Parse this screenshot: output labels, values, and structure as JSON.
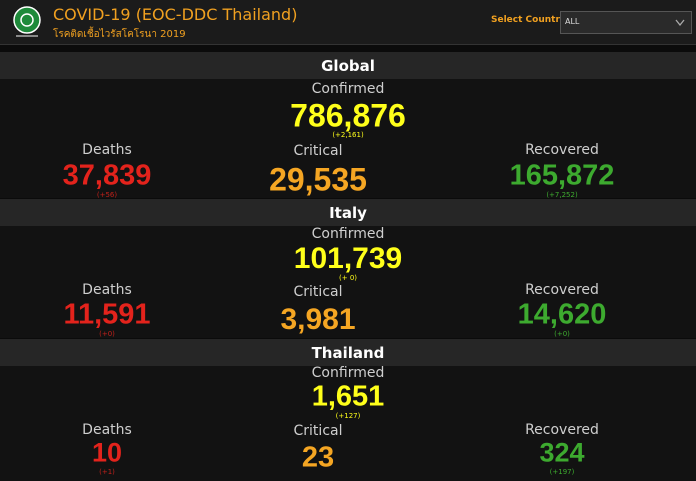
{
  "header": {
    "title": "COVID-19 (EOC-DDC Thailand)",
    "subtitle": "โรคติดเชื้อไวรัสโคโรนา 2019",
    "select_label": "Select Country",
    "select_value": "ALL"
  },
  "sections": [
    {
      "name": "Global",
      "confirmed": {
        "label": "Confirmed",
        "value": "786,876",
        "change": "(+2,161)"
      },
      "deaths": {
        "label": "Deaths",
        "value": "37,839",
        "change": "(+56)"
      },
      "critical": {
        "label": "Critical",
        "value": "29,535"
      },
      "recovered": {
        "label": "Recovered",
        "value": "165,872",
        "change": "(+7,252)"
      }
    },
    {
      "name": "Italy",
      "confirmed": {
        "label": "Confirmed",
        "value": "101,739",
        "change": "(+ 0)"
      },
      "deaths": {
        "label": "Deaths",
        "value": "11,591",
        "change": "(+0)"
      },
      "critical": {
        "label": "Critical",
        "value": "3,981"
      },
      "recovered": {
        "label": "Recovered",
        "value": "14,620",
        "change": "(+0)"
      }
    },
    {
      "name": "Thailand",
      "confirmed": {
        "label": "Confirmed",
        "value": "1,651",
        "change": "(+127)"
      },
      "deaths": {
        "label": "Deaths",
        "value": "10",
        "change": "(+1)"
      },
      "critical": {
        "label": "Critical",
        "value": "23"
      },
      "recovered": {
        "label": "Recovered",
        "value": "324",
        "change": "(+197)"
      }
    }
  ]
}
